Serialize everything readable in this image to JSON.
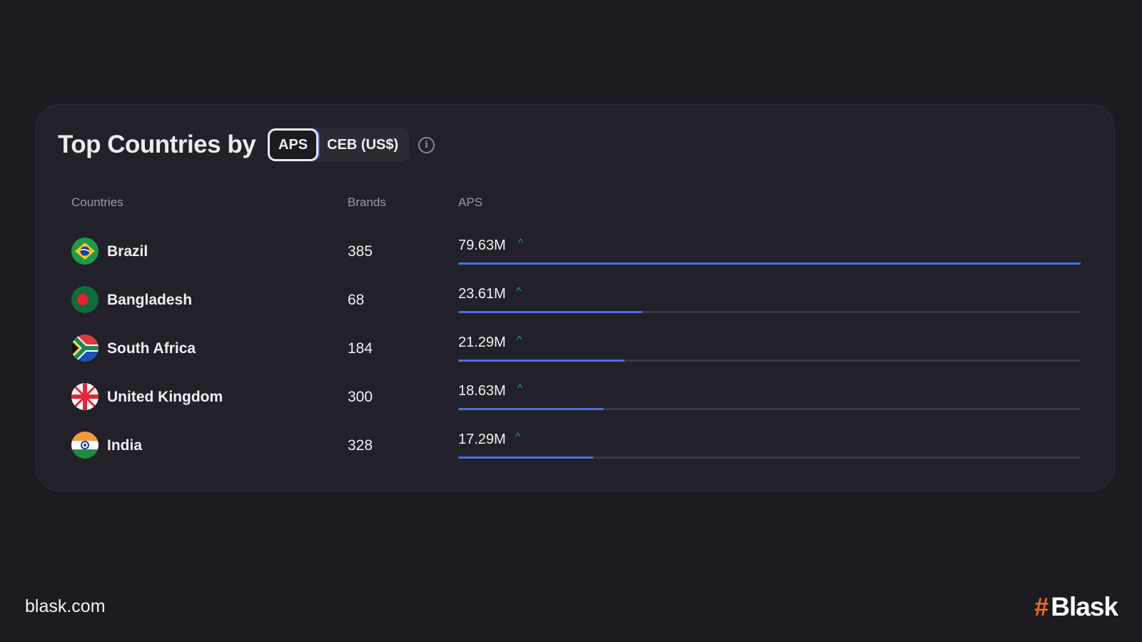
{
  "header": {
    "title": "Top Countries by",
    "toggle": [
      {
        "label": "APS",
        "active": true
      },
      {
        "label": "CEB (US$)",
        "active": false
      }
    ],
    "info_icon": "info-icon"
  },
  "columns": [
    "Countries",
    "Brands",
    "APS"
  ],
  "rows": [
    {
      "country": "Brazil",
      "brands": "385",
      "aps": "79.63M",
      "trend": "up",
      "fill_pct": 100
    },
    {
      "country": "Bangladesh",
      "brands": "68",
      "aps": "23.61M",
      "trend": "up",
      "fill_pct": 29.6
    },
    {
      "country": "South Africa",
      "brands": "184",
      "aps": "21.29M",
      "trend": "up",
      "fill_pct": 26.7
    },
    {
      "country": "United Kingdom",
      "brands": "300",
      "aps": "18.63M",
      "trend": "up",
      "fill_pct": 23.4
    },
    {
      "country": "India",
      "brands": "328",
      "aps": "17.29M",
      "trend": "up",
      "fill_pct": 21.7
    }
  ],
  "colors": {
    "bar": "#4b6ee0",
    "trend_up": "#2fa35a",
    "brand": "#f26a1b"
  },
  "footer": {
    "url": "blask.com",
    "logo": "Blask"
  }
}
